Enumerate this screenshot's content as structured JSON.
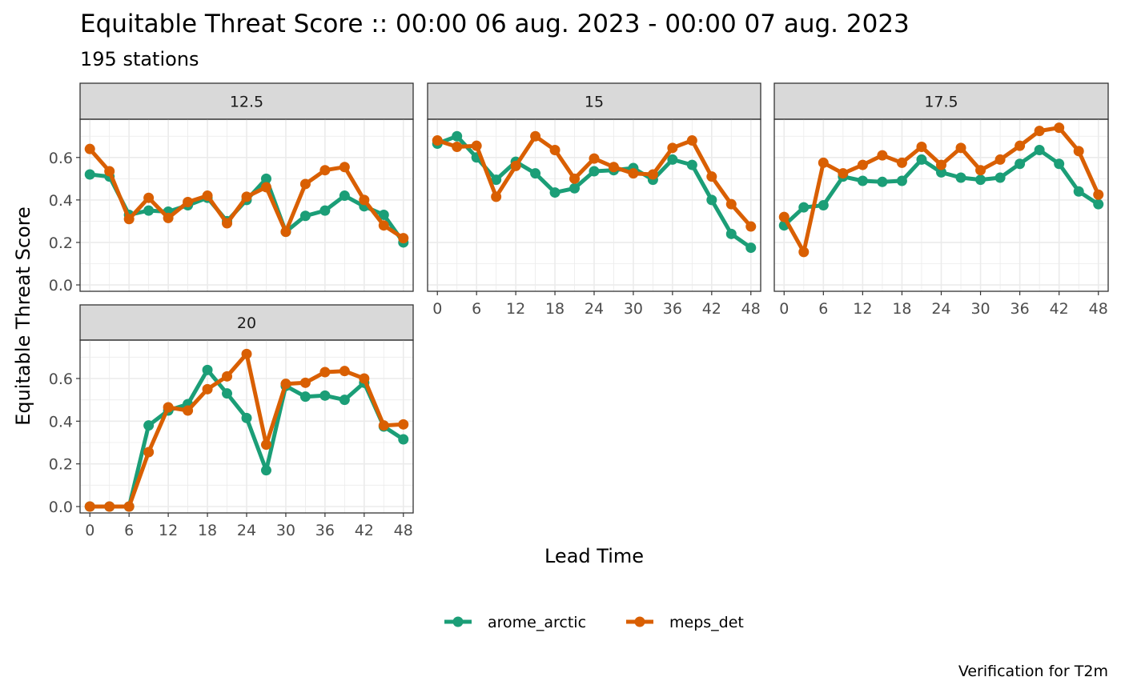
{
  "title": "Equitable Threat Score :: 00:00 06 aug. 2023 - 00:00 07 aug. 2023",
  "subtitle": "195 stations",
  "caption": "Verification for T2m",
  "colors": {
    "arome_arctic": "#1b9e77",
    "meps_det": "#d95f02"
  },
  "chart_data": {
    "type": "line",
    "xlabel": "Lead Time",
    "ylabel": "Equitable Threat Score",
    "xlim": [
      -1.5,
      49.5
    ],
    "ylim": [
      -0.03,
      0.78
    ],
    "x_ticks": [
      0,
      6,
      12,
      18,
      24,
      30,
      36,
      42,
      48
    ],
    "x_tick_labels": [
      "0",
      "6",
      "12",
      "18",
      "24",
      "30",
      "36",
      "42",
      "48"
    ],
    "y_ticks": [
      0.0,
      0.2,
      0.4,
      0.6
    ],
    "y_tick_labels": [
      "0.0",
      "0.2",
      "0.4",
      "0.6"
    ],
    "grid": true,
    "legend_position": "bottom",
    "legend": [
      "arome_arctic",
      "meps_det"
    ],
    "x": [
      0,
      3,
      6,
      9,
      12,
      15,
      18,
      21,
      24,
      27,
      30,
      33,
      36,
      39,
      42,
      45,
      48
    ],
    "panels": [
      {
        "label": "12.5",
        "series": [
          {
            "name": "arome_arctic",
            "values": [
              0.52,
              0.51,
              0.33,
              0.35,
              0.345,
              0.375,
              0.41,
              0.3,
              0.4,
              0.5,
              0.25,
              0.325,
              0.35,
              0.42,
              0.37,
              0.33,
              0.2
            ]
          },
          {
            "name": "meps_det",
            "values": [
              0.64,
              0.535,
              0.31,
              0.41,
              0.315,
              0.39,
              0.42,
              0.29,
              0.415,
              0.46,
              0.25,
              0.475,
              0.54,
              0.555,
              0.4,
              0.28,
              0.22
            ]
          }
        ]
      },
      {
        "label": "15",
        "series": [
          {
            "name": "arome_arctic",
            "values": [
              0.665,
              0.7,
              0.6,
              0.495,
              0.58,
              0.525,
              0.435,
              0.455,
              0.535,
              0.54,
              0.55,
              0.495,
              0.59,
              0.565,
              0.4,
              0.24,
              0.175
            ]
          },
          {
            "name": "meps_det",
            "values": [
              0.68,
              0.65,
              0.655,
              0.415,
              0.56,
              0.7,
              0.635,
              0.5,
              0.595,
              0.555,
              0.525,
              0.52,
              0.645,
              0.68,
              0.51,
              0.38,
              0.275
            ]
          }
        ]
      },
      {
        "label": "17.5",
        "series": [
          {
            "name": "arome_arctic",
            "values": [
              0.28,
              0.365,
              0.375,
              0.51,
              0.49,
              0.485,
              0.49,
              0.59,
              0.53,
              0.505,
              0.495,
              0.505,
              0.57,
              0.635,
              0.57,
              0.44,
              0.38
            ]
          },
          {
            "name": "meps_det",
            "values": [
              0.32,
              0.155,
              0.575,
              0.525,
              0.565,
              0.61,
              0.575,
              0.65,
              0.565,
              0.645,
              0.54,
              0.59,
              0.655,
              0.725,
              0.74,
              0.63,
              0.425
            ]
          }
        ]
      },
      {
        "label": "20",
        "series": [
          {
            "name": "arome_arctic",
            "values": [
              0.0,
              0.0,
              0.0,
              0.38,
              0.45,
              0.48,
              0.64,
              0.53,
              0.415,
              0.17,
              0.565,
              0.515,
              0.52,
              0.5,
              0.58,
              0.375,
              0.315
            ]
          },
          {
            "name": "meps_det",
            "values": [
              0.0,
              0.0,
              0.0,
              0.255,
              0.465,
              0.45,
              0.55,
              0.61,
              0.715,
              0.29,
              0.575,
              0.58,
              0.63,
              0.635,
              0.6,
              0.38,
              0.385
            ]
          }
        ]
      }
    ]
  }
}
